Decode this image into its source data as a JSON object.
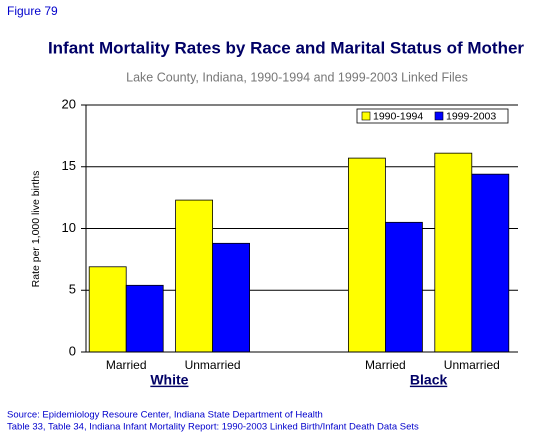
{
  "figure_label": "Figure 79",
  "chart_data": {
    "type": "bar",
    "title": "Infant Mortality Rates by Race and Marital Status of Mother",
    "subtitle": "Lake County, Indiana, 1990-1994 and 1999-2003 Linked Files",
    "y_label": "Rate per 1,000 live births",
    "categories": [
      "Married",
      "Unmarried",
      null,
      "Married",
      "Unmarried"
    ],
    "group_labels": [
      "White",
      "Black"
    ],
    "series": [
      {
        "name": "1990-1994",
        "color": "#ffff00",
        "values": [
          6.9,
          12.3,
          null,
          15.7,
          16.1
        ]
      },
      {
        "name": "1999-2003",
        "color": "#0000ff",
        "values": [
          5.4,
          8.8,
          null,
          10.5,
          14.4
        ]
      }
    ],
    "ylim": [
      0,
      20
    ],
    "yticks": [
      0,
      5,
      10,
      15,
      20
    ],
    "grid": true,
    "legend": "top-right"
  },
  "source": [
    "Source: Epidemiology Resoure Center, Indiana State Department of Health",
    "Table 33, Table 34, Indiana Infant Mortality Report: 1990-2003 Linked Birth/Infant Death Data Sets"
  ]
}
